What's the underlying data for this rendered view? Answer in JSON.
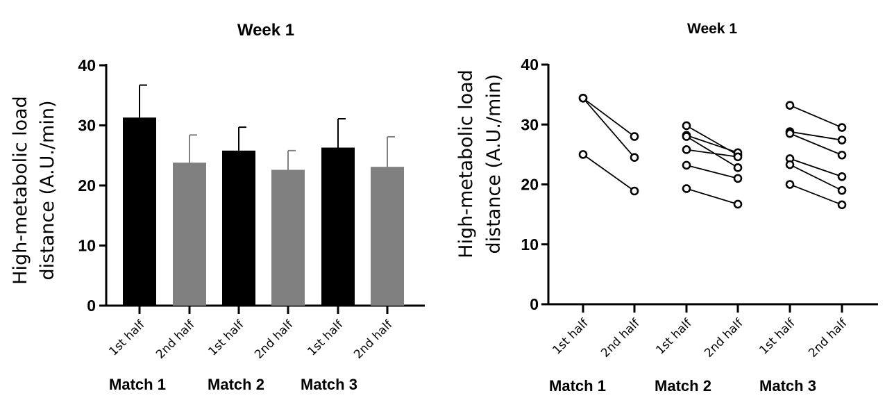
{
  "chart_data": [
    {
      "type": "bar",
      "title": "Week 1",
      "ylabel_line1": "High-metabolic load",
      "ylabel_line2": "distance (A.U./min)",
      "ylim": [
        0,
        40
      ],
      "yticks": [
        "0",
        "10",
        "20",
        "30",
        "40"
      ],
      "categories": [
        "1st half",
        "2nd half",
        "1st half",
        "2nd half",
        "1st half",
        "2nd half"
      ],
      "groups": [
        "Match 1",
        "Match 2",
        "Match 3"
      ],
      "values": [
        31.3,
        23.8,
        25.8,
        22.6,
        26.3,
        23.1
      ],
      "errors": [
        5.4,
        4.6,
        3.9,
        3.2,
        4.8,
        5.0
      ],
      "colors": [
        "#000000",
        "#808080",
        "#000000",
        "#808080",
        "#000000",
        "#808080"
      ]
    },
    {
      "type": "scatter",
      "title": "Week 1",
      "ylabel_line1": "High-metabolic load",
      "ylabel_line2": "distance (A.U./min)",
      "ylim": [
        0,
        40
      ],
      "yticks": [
        "0",
        "10",
        "20",
        "30",
        "40"
      ],
      "categories": [
        "1st half",
        "2nd half",
        "1st half",
        "2nd half",
        "1st half",
        "2nd half"
      ],
      "groups": [
        "Match 1",
        "Match 2",
        "Match 3"
      ],
      "pairs": [
        {
          "match": 0,
          "values": [
            [
              34.4,
              28.0
            ],
            [
              34.4,
              24.5
            ],
            [
              25.0,
              18.9
            ]
          ]
        },
        {
          "match": 1,
          "values": [
            [
              29.8,
              24.9
            ],
            [
              28.2,
              25.3
            ],
            [
              28.0,
              22.8
            ],
            [
              25.8,
              24.6
            ],
            [
              23.2,
              21.0
            ],
            [
              19.3,
              16.7
            ]
          ]
        },
        {
          "match": 2,
          "values": [
            [
              33.2,
              29.5
            ],
            [
              28.8,
              27.4
            ],
            [
              28.5,
              24.9
            ],
            [
              24.3,
              21.3
            ],
            [
              23.3,
              19.0
            ],
            [
              20.0,
              16.6
            ]
          ]
        }
      ]
    }
  ]
}
